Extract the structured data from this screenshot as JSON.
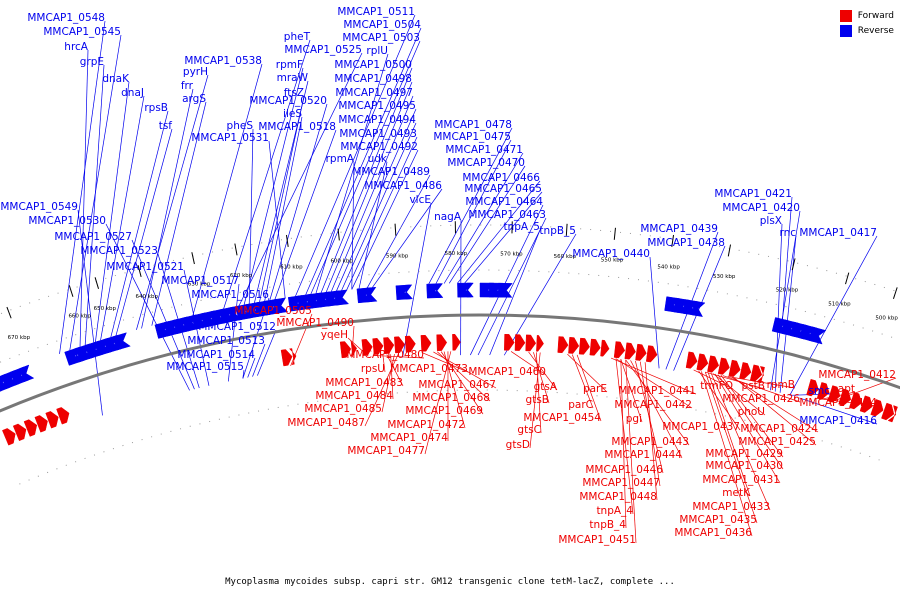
{
  "title": "Mycoplasma mycoides subsp. capri str. GM12 transgenic clone tetM-lacZ, complete ...",
  "colors": {
    "forward": "#ee0000",
    "reverse": "#0000ee",
    "backbone": "#808080"
  },
  "legend": [
    {
      "label": "Forward",
      "color": "#ee0000"
    },
    {
      "label": "Reverse",
      "color": "#0000ee"
    }
  ],
  "kbp_ticks": [
    "500 kbp",
    "510 kbp",
    "520 kbp",
    "530 kbp",
    "540 kbp",
    "550 kbp",
    "560 kbp",
    "570 kbp",
    "580 kbp",
    "590 kbp",
    "600 kbp",
    "610 kbp",
    "620 kbp",
    "630 kbp",
    "640 kbp",
    "650 kbp",
    "660 kbp",
    "670 kbp"
  ],
  "reverse_labels": [
    "MMCAP1_0548",
    "MMCAP1_0545",
    "hrcA",
    "grpE",
    "dnaK",
    "dnaJ",
    "tsf",
    "rpsB",
    "pyrH",
    "frr",
    "argS",
    "MMCAP1_0538",
    "pheT",
    "MMCAP1_0525",
    "rpmF",
    "mraW",
    "ftsZ",
    "MMCAP1_0520",
    "ileS",
    "pheS",
    "MMCAP1_0518",
    "MMCAP1_0531",
    "MMCAP1_0511",
    "MMCAP1_0504",
    "MMCAP1_0503",
    "rplU",
    "MMCAP1_0500",
    "MMCAP1_0498",
    "MMCAP1_0497",
    "MMCAP1_0495",
    "MMCAP1_0494",
    "MMCAP1_0493",
    "MMCAP1_0492",
    "rpmA",
    "udk",
    "MMCAP1_0489",
    "MMCAP1_0486",
    "vlcE",
    "MMCAP1_0478",
    "MMCAP1_0475",
    "MMCAP1_0471",
    "MMCAP1_0470",
    "MMCAP1_0466",
    "MMCAP1_0465",
    "MMCAP1_0464",
    "MMCAP1_0463",
    "nagA",
    "tnpA_5",
    "tnpB_5",
    "MMCAP1_0440",
    "MMCAP1_0439",
    "MMCAP1_0438",
    "MMCAP1_0421",
    "MMCAP1_0420",
    "plsX",
    "rnc",
    "MMCAP1_0417",
    "MMCAP1_0549",
    "MMCAP1_0530",
    "MMCAP1_0527",
    "MMCAP1_0523",
    "MMCAP1_0521",
    "MMCAP1_0517",
    "MMCAP1_0516",
    "MMCAP1_0512",
    "MMCAP1_0513",
    "MMCAP1_0514",
    "MMCAP1_0515",
    "smc",
    "MMCAP1_0416"
  ],
  "forward_labels": [
    "MMCAP1_0505",
    "MMCAP1_0490",
    "yqeH",
    "MMCAP1_0480",
    "rpsU",
    "MMCAP1_0483",
    "MMCAP1_0484",
    "MMCAP1_0485",
    "MMCAP1_0487",
    "MMCAP1_0473",
    "MMCAP1_0467",
    "MMCAP1_0468",
    "MMCAP1_0469",
    "MMCAP1_0472",
    "MMCAP1_0474",
    "MMCAP1_0477",
    "MMCAP1_0460",
    "gtsA",
    "gtsB",
    "gtsC",
    "gtsD",
    "parE",
    "parC",
    "MMCAP1_0454",
    "MMCAP1_0441",
    "MMCAP1_0442",
    "pgi",
    "MMCAP1_0443",
    "MMCAP1_0444",
    "MMCAP1_0446",
    "MMCAP1_0447",
    "MMCAP1_0448",
    "tnpA_4",
    "tnpB_4",
    "MMCAP1_0451",
    "trmFO",
    "pstB",
    "rpmB",
    "MMCAP1_0426",
    "phoU",
    "MMCAP1_0437",
    "MMCAP1_0424",
    "MMCAP1_0425",
    "MMCAP1_0429",
    "MMCAP1_0430",
    "MMCAP1_0431",
    "metK",
    "MMCAP1_0433",
    "MMCAP1_0435",
    "MMCAP1_0436",
    "MMCAP1_0412",
    "apt",
    "MMCAP1_0414"
  ]
}
